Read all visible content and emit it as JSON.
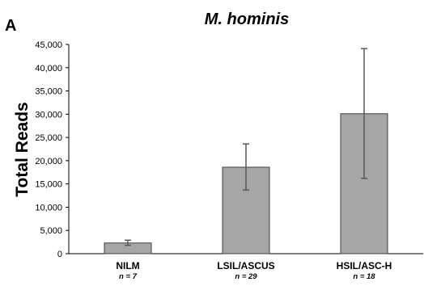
{
  "chart_data": {
    "type": "bar",
    "panel_label": "A",
    "title": "M. hominis",
    "xlabel": "",
    "ylabel": "Total Reads",
    "ylim": [
      0,
      45000
    ],
    "yticks": [
      "0",
      "5,000",
      "10,000",
      "15,000",
      "20,000",
      "25,000",
      "30,000",
      "35,000",
      "40,000",
      "45,000"
    ],
    "ytick_values": [
      0,
      5000,
      10000,
      15000,
      20000,
      25000,
      30000,
      35000,
      40000,
      45000
    ],
    "categories": [
      "NILM",
      "LSIL/ASCUS",
      "HSIL/ASC-H"
    ],
    "sample_sizes": [
      "n = 7",
      "n = 29",
      "n = 18"
    ],
    "values": [
      2300,
      18600,
      30100
    ],
    "error_low": [
      1800,
      13700,
      16200
    ],
    "error_high": [
      2900,
      23600,
      44100
    ],
    "grid": false,
    "legend": "none",
    "colors": {
      "bar": "#a6a6a6",
      "bar_edge": "#404040",
      "error_bar": "#595959",
      "axis": "#000000"
    }
  }
}
